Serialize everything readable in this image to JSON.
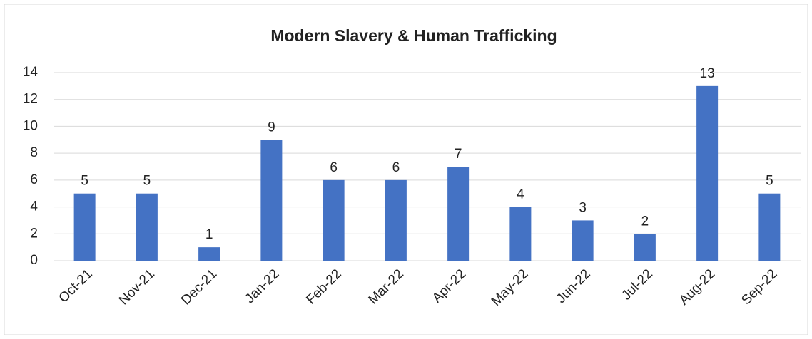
{
  "chart_data": {
    "type": "bar",
    "title": "Modern Slavery & Human Trafficking",
    "categories": [
      "Oct-21",
      "Nov-21",
      "Dec-21",
      "Jan-22",
      "Feb-22",
      "Mar-22",
      "Apr-22",
      "May-22",
      "Jun-22",
      "Jul-22",
      "Aug-22",
      "Sep-22"
    ],
    "values": [
      5,
      5,
      1,
      9,
      6,
      6,
      7,
      4,
      3,
      2,
      13,
      5
    ],
    "color": "#4472c4",
    "ylim": [
      0,
      14
    ],
    "yticks": [
      0,
      2,
      4,
      6,
      8,
      10,
      12,
      14
    ],
    "grid": true
  }
}
